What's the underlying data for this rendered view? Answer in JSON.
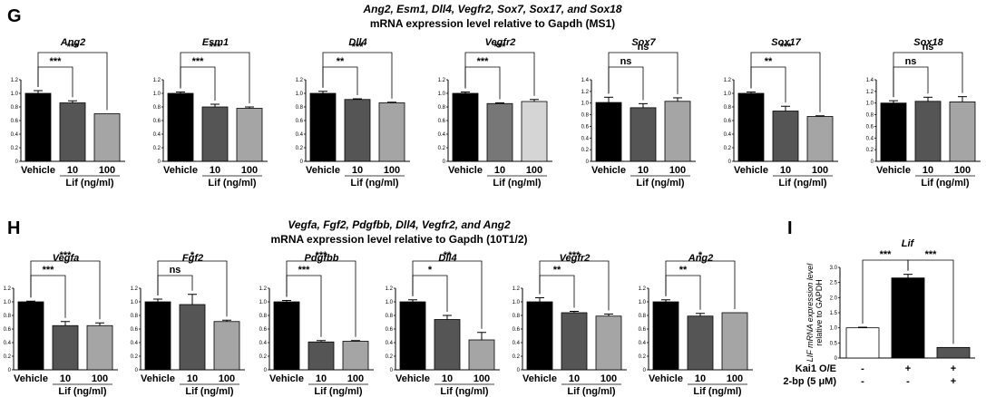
{
  "panels": {
    "G": {
      "letter": "G",
      "title_line1": "Ang2, Esm1, Dll4, Vegfr2, Sox7, Sox17, and Sox18",
      "title_line2": "mRNA expression level relative to Gapdh (MS1)"
    },
    "H": {
      "letter": "H",
      "title_line1": "Vegfa, Fgf2, Pdgfbb, Dll4, Vegfr2, and Ang2",
      "title_line2": "mRNA expression level relative to Gapdh (10T1/2)"
    },
    "I": {
      "letter": "I"
    }
  },
  "chart_data": [
    {
      "type": "bar",
      "title": "Ang2",
      "categories": [
        "Vehicle",
        "10",
        "100"
      ],
      "values": [
        1.0,
        0.86,
        0.7
      ],
      "errors": [
        0.04,
        0.03,
        0
      ],
      "colors": [
        "#000000",
        "#555555",
        "#a5a5a5"
      ],
      "xlabel": "Lif (ng/ml)",
      "ylim": [
        0,
        1.2
      ],
      "yticks": [
        "0",
        "0.2",
        "0.4",
        "0.6",
        "0.8",
        "1.0",
        "1.2"
      ],
      "sig": [
        {
          "from": 0,
          "to": 1,
          "label": "***"
        },
        {
          "from": 0,
          "to": 2,
          "label": "***"
        }
      ]
    },
    {
      "type": "bar",
      "title": "Esm1",
      "categories": [
        "Vehicle",
        "10",
        "100"
      ],
      "values": [
        1.0,
        0.8,
        0.78
      ],
      "errors": [
        0.02,
        0.04,
        0.02
      ],
      "colors": [
        "#000000",
        "#555555",
        "#a5a5a5"
      ],
      "xlabel": "Lif (ng/ml)",
      "ylim": [
        0,
        1.2
      ],
      "yticks": [
        "0",
        "0.2",
        "0.4",
        "0.6",
        "0.8",
        "1.0",
        "1.2"
      ],
      "sig": [
        {
          "from": 0,
          "to": 1,
          "label": "***"
        },
        {
          "from": 0,
          "to": 2,
          "label": "***"
        }
      ]
    },
    {
      "type": "bar",
      "title": "Dll4",
      "categories": [
        "Vehicle",
        "10",
        "100"
      ],
      "values": [
        1.0,
        0.91,
        0.86
      ],
      "errors": [
        0.03,
        0.01,
        0.01
      ],
      "colors": [
        "#000000",
        "#555555",
        "#a5a5a5"
      ],
      "xlabel": "Lif (ng/ml)",
      "ylim": [
        0,
        1.2
      ],
      "yticks": [
        "0",
        "0.2",
        "0.4",
        "0.6",
        "0.8",
        "1.0",
        "1.2"
      ],
      "sig": [
        {
          "from": 0,
          "to": 1,
          "label": "**"
        },
        {
          "from": 0,
          "to": 2,
          "label": "***"
        }
      ]
    },
    {
      "type": "bar",
      "title": "Vegfr2",
      "categories": [
        "Vehicle",
        "10",
        "100"
      ],
      "values": [
        1.0,
        0.85,
        0.88
      ],
      "errors": [
        0.02,
        0.01,
        0.03
      ],
      "colors": [
        "#000000",
        "#777777",
        "#d5d5d5"
      ],
      "xlabel": "Lif (ng/ml)",
      "ylim": [
        0,
        1.2
      ],
      "yticks": [
        "0",
        "0.2",
        "0.4",
        "0.6",
        "0.8",
        "1.0",
        "1.2"
      ],
      "sig": [
        {
          "from": 0,
          "to": 1,
          "label": "***"
        },
        {
          "from": 0,
          "to": 2,
          "label": "***"
        }
      ]
    },
    {
      "type": "bar",
      "title": "Sox7",
      "categories": [
        "Vehicle",
        "10",
        "100"
      ],
      "values": [
        1.01,
        0.92,
        1.03
      ],
      "errors": [
        0.09,
        0.07,
        0.06
      ],
      "colors": [
        "#000000",
        "#555555",
        "#a5a5a5"
      ],
      "xlabel": "Lif (ng/ml)",
      "ylim": [
        0,
        1.4
      ],
      "yticks": [
        "0",
        "0.2",
        "0.4",
        "0.6",
        "0.8",
        "1.0",
        "1.2",
        "1.4"
      ],
      "sig": [
        {
          "from": 0,
          "to": 1,
          "label": "ns"
        },
        {
          "from": 0,
          "to": 2,
          "label": "ns"
        }
      ]
    },
    {
      "type": "bar",
      "title": "Sox17",
      "categories": [
        "Vehicle",
        "10",
        "100"
      ],
      "values": [
        1.0,
        0.74,
        0.66
      ],
      "errors": [
        0.02,
        0.07,
        0.01
      ],
      "colors": [
        "#000000",
        "#555555",
        "#a5a5a5"
      ],
      "xlabel": "Lif (ng/ml)",
      "ylim": [
        0,
        1.2
      ],
      "yticks": [
        "0",
        "0.2",
        "0.4",
        "0.6",
        "0.8",
        "1.0",
        "1.2"
      ],
      "sig": [
        {
          "from": 0,
          "to": 1,
          "label": "**"
        },
        {
          "from": 0,
          "to": 2,
          "label": "***"
        }
      ]
    },
    {
      "type": "bar",
      "title": "Sox18",
      "categories": [
        "Vehicle",
        "10",
        "100"
      ],
      "values": [
        1.0,
        1.03,
        1.02
      ],
      "errors": [
        0.04,
        0.07,
        0.09
      ],
      "colors": [
        "#000000",
        "#555555",
        "#a5a5a5"
      ],
      "xlabel": "Lif (ng/ml)",
      "ylim": [
        0,
        1.4
      ],
      "yticks": [
        "0",
        "0.2",
        "0.4",
        "0.6",
        "0.8",
        "1.0",
        "1.2",
        "1.4"
      ],
      "sig": [
        {
          "from": 0,
          "to": 1,
          "label": "ns"
        },
        {
          "from": 0,
          "to": 2,
          "label": "ns"
        }
      ]
    },
    {
      "type": "bar",
      "title": "Vegfa",
      "categories": [
        "Vehicle",
        "10",
        "100"
      ],
      "values": [
        1.0,
        0.65,
        0.65
      ],
      "errors": [
        0.01,
        0.06,
        0.04
      ],
      "colors": [
        "#000000",
        "#555555",
        "#a5a5a5"
      ],
      "xlabel": "Lif (ng/ml)",
      "ylim": [
        0,
        1.2
      ],
      "yticks": [
        "0",
        "0.2",
        "0.4",
        "0.6",
        "0.8",
        "1.0",
        "1.2"
      ],
      "sig": [
        {
          "from": 0,
          "to": 1,
          "label": "***"
        },
        {
          "from": 0,
          "to": 2,
          "label": "***"
        }
      ]
    },
    {
      "type": "bar",
      "title": "Fgf2",
      "categories": [
        "Vehicle",
        "10",
        "100"
      ],
      "values": [
        1.0,
        0.96,
        0.71
      ],
      "errors": [
        0.04,
        0.15,
        0.02
      ],
      "colors": [
        "#000000",
        "#555555",
        "#a5a5a5"
      ],
      "xlabel": "Lif (ng/ml)",
      "ylim": [
        0,
        1.2
      ],
      "yticks": [
        "0",
        "0.2",
        "0.4",
        "0.6",
        "0.8",
        "1.0",
        "1.2"
      ],
      "sig": [
        {
          "from": 0,
          "to": 1,
          "label": "ns"
        },
        {
          "from": 0,
          "to": 2,
          "label": "*"
        }
      ]
    },
    {
      "type": "bar",
      "title": "Pdgfbb",
      "categories": [
        "Vehicle",
        "10",
        "100"
      ],
      "values": [
        1.0,
        0.41,
        0.42
      ],
      "errors": [
        0.02,
        0.02,
        0.01
      ],
      "colors": [
        "#000000",
        "#555555",
        "#a5a5a5"
      ],
      "xlabel": "Lif (ng/ml)",
      "ylim": [
        0,
        1.2
      ],
      "yticks": [
        "0",
        "0.2",
        "0.4",
        "0.6",
        "0.8",
        "1.0",
        "1.2"
      ],
      "sig": [
        {
          "from": 0,
          "to": 1,
          "label": "***"
        },
        {
          "from": 0,
          "to": 2,
          "label": "***"
        }
      ]
    },
    {
      "type": "bar",
      "title": "Dll4",
      "categories": [
        "Vehicle",
        "10",
        "100"
      ],
      "values": [
        1.0,
        0.74,
        0.44
      ],
      "errors": [
        0.03,
        0.06,
        0.11
      ],
      "colors": [
        "#000000",
        "#555555",
        "#a5a5a5"
      ],
      "xlabel": "Lif (ng/ml)",
      "ylim": [
        0,
        1.2
      ],
      "yticks": [
        "0",
        "0.2",
        "0.4",
        "0.6",
        "0.8",
        "1.0",
        "1.2"
      ],
      "sig": [
        {
          "from": 0,
          "to": 1,
          "label": "*"
        },
        {
          "from": 0,
          "to": 2,
          "label": "**"
        }
      ]
    },
    {
      "type": "bar",
      "title": "Vegfr2",
      "categories": [
        "Vehicle",
        "10",
        "100"
      ],
      "values": [
        1.0,
        0.84,
        0.79
      ],
      "errors": [
        0.06,
        0.02,
        0.03
      ],
      "colors": [
        "#000000",
        "#555555",
        "#a5a5a5"
      ],
      "xlabel": "Lif (ng/ml)",
      "ylim": [
        0,
        1.2
      ],
      "yticks": [
        "0",
        "0.2",
        "0.4",
        "0.6",
        "0.8",
        "1.0",
        "1.2"
      ],
      "sig": [
        {
          "from": 0,
          "to": 1,
          "label": "**"
        },
        {
          "from": 0,
          "to": 2,
          "label": "***"
        }
      ]
    },
    {
      "type": "bar",
      "title": "Ang2",
      "categories": [
        "Vehicle",
        "10",
        "100"
      ],
      "values": [
        1.0,
        0.79,
        0.84
      ],
      "errors": [
        0.03,
        0.04,
        0
      ],
      "colors": [
        "#000000",
        "#555555",
        "#a5a5a5"
      ],
      "xlabel": "Lif (ng/ml)",
      "ylim": [
        0,
        1.2
      ],
      "yticks": [
        "0",
        "0.2",
        "0.4",
        "0.6",
        "0.8",
        "1.0",
        "1.2"
      ],
      "sig": [
        {
          "from": 0,
          "to": 1,
          "label": "**"
        },
        {
          "from": 0,
          "to": 2,
          "label": "*"
        }
      ]
    },
    {
      "type": "bar",
      "title": "Lif",
      "categories": [
        "-",
        "+",
        "+"
      ],
      "values": [
        1.0,
        2.65,
        0.35
      ],
      "errors": [
        0.02,
        0.12,
        0
      ],
      "colors": [
        "#ffffff",
        "#000000",
        "#555555"
      ],
      "ylabel": "LIF mRNA expression level relative to GAPDH",
      "ylabel_line1": "LIF mRNA expression level",
      "ylabel_line2": "relative to GAPDH",
      "ylim": [
        0,
        3.0
      ],
      "yticks": [
        "0",
        "0.5",
        "1.0",
        "1.5",
        "2.0",
        "2.5",
        "3.0"
      ],
      "factor_rows": [
        {
          "label": "Kai1 O/E",
          "values": [
            "-",
            "+",
            "+"
          ]
        },
        {
          "label": "2-bp (5 μM)",
          "values": [
            "-",
            "-",
            "+"
          ]
        }
      ],
      "sig": [
        {
          "from": 0,
          "to": 1,
          "label": "***"
        },
        {
          "from": 1,
          "to": 2,
          "label": "***"
        }
      ]
    }
  ]
}
